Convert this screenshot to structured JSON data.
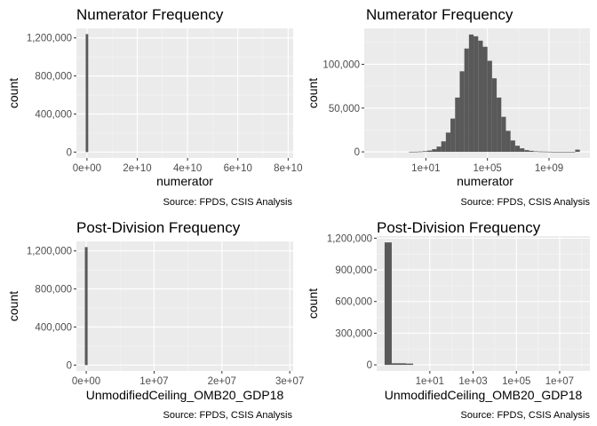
{
  "figure": {
    "panel_background": "#ebebeb",
    "grid_major_color": "#ffffff",
    "grid_minor_color": "#f5f5f5",
    "bar_fill": "#595959"
  },
  "chart_data": [
    {
      "type": "bar",
      "title": "Numerator Frequency",
      "xlabel": "numerator",
      "ylabel": "count",
      "caption": "Source: FPDS, CSIS Analysis",
      "x_scale": "linear",
      "xlim": [
        -4200000000.0,
        82000000000.0
      ],
      "ylim": [
        -62000,
        1300000
      ],
      "x_ticks": [
        0,
        20000000000.0,
        40000000000.0,
        60000000000.0,
        80000000000.0
      ],
      "x_tick_labels": [
        "0e+00",
        "2e+10",
        "4e+10",
        "6e+10",
        "8e+10"
      ],
      "y_ticks": [
        0,
        400000,
        800000,
        1200000
      ],
      "y_tick_labels": [
        "0",
        "400,000",
        "800,000",
        "1,200,000"
      ],
      "grid": true,
      "bars": [
        {
          "x0": -500000000.0,
          "x1": 500000000.0,
          "count": 1240000
        }
      ]
    },
    {
      "type": "bar",
      "title": "Numerator Frequency",
      "xlabel": "numerator",
      "ylabel": "count",
      "caption": "Source: FPDS, CSIS Analysis",
      "x_scale": "log10",
      "xlim": [
        0.001,
        450000000000.0
      ],
      "ylim": [
        -7000,
        141000
      ],
      "x_ticks": [
        10.0,
        100000.0,
        1000000000.0
      ],
      "x_tick_labels": [
        "1e+01",
        "1e+05",
        "1e+09"
      ],
      "y_ticks": [
        0,
        50000,
        100000
      ],
      "y_tick_labels": [
        "0",
        "50,000",
        "100,000"
      ],
      "grid": true,
      "bin_edges_log10": [
        -0.1,
        0.2,
        0.5,
        0.8,
        1.1,
        1.4,
        1.7,
        2.0,
        2.3,
        2.6,
        2.9,
        3.2,
        3.5,
        3.8,
        4.1,
        4.4,
        4.7,
        5.0,
        5.3,
        5.6,
        5.9,
        6.2,
        6.5,
        6.8,
        7.1,
        7.4,
        7.7,
        8.0,
        8.3,
        8.6,
        8.9,
        9.2,
        9.5,
        9.8,
        10.1,
        10.4,
        10.7,
        11.0
      ],
      "counts": [
        150,
        200,
        400,
        800,
        1500,
        3000,
        6000,
        12000,
        22000,
        38000,
        62000,
        92000,
        118000,
        134000,
        132000,
        127000,
        120000,
        104000,
        84000,
        62000,
        40000,
        24000,
        13000,
        7000,
        4000,
        2000,
        1200,
        600,
        400,
        300,
        200,
        100,
        100,
        100,
        100,
        100,
        2500
      ]
    },
    {
      "type": "bar",
      "title": "Post-Division Frequency",
      "xlabel": "UnmodifiedCeiling_OMB20_GDP18",
      "ylabel": "count",
      "caption": "Source: FPDS, CSIS Analysis",
      "x_scale": "linear",
      "xlim": [
        -1450000.0,
        30500000.0
      ],
      "ylim": [
        -62000,
        1300000
      ],
      "x_ticks": [
        0,
        10000000.0,
        20000000.0,
        30000000.0
      ],
      "x_tick_labels": [
        "0e+00",
        "1e+07",
        "2e+07",
        "3e+07"
      ],
      "y_ticks": [
        0,
        400000,
        800000,
        1200000
      ],
      "y_tick_labels": [
        "0",
        "400,000",
        "800,000",
        "1,200,000"
      ],
      "grid": true,
      "bars": [
        {
          "x0": -200000.0,
          "x1": 200000.0,
          "count": 1240000
        }
      ]
    },
    {
      "type": "bar",
      "title": "Post-Division Frequency",
      "xlabel": "UnmodifiedCeiling_OMB20_GDP18",
      "ylabel": "count",
      "caption": "Source: FPDS, CSIS Analysis",
      "x_scale": "log10",
      "xlim": [
        0.035,
        250000000.0
      ],
      "ylim": [
        -58000,
        1220000
      ],
      "x_ticks": [
        10.0,
        1000.0,
        100000.0,
        10000000.0
      ],
      "x_tick_labels": [
        "1e+01",
        "1e+03",
        "1e+05",
        "1e+07"
      ],
      "y_ticks": [
        0,
        300000,
        600000,
        900000,
        1200000
      ],
      "y_tick_labels": [
        "0",
        "300,000",
        "600,000",
        "900,000",
        "1,200,000"
      ],
      "grid": true,
      "bin_edges_log10": [
        -1.09,
        -0.76,
        -0.43,
        -0.1,
        0.23
      ],
      "counts": [
        1160000,
        15000,
        15000,
        12000
      ]
    }
  ]
}
